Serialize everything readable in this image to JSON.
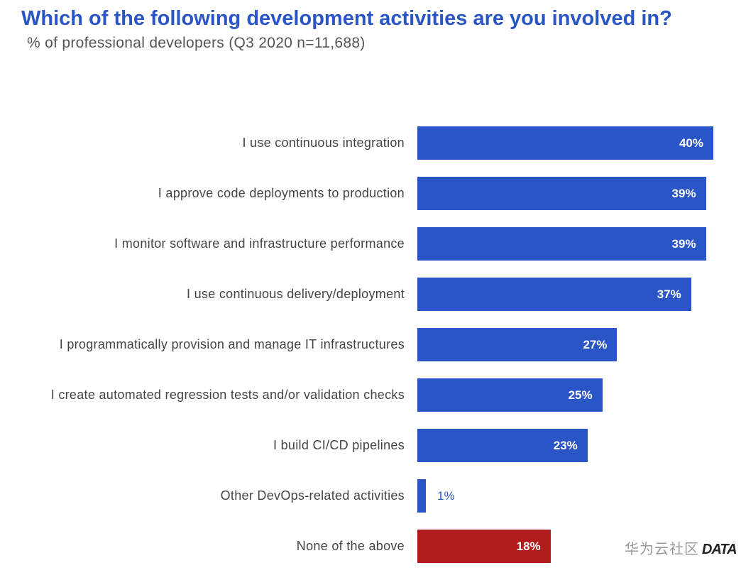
{
  "chart_data": {
    "type": "bar",
    "orientation": "horizontal",
    "title": "Which of the following development activities are you involved in?",
    "subtitle": "% of professional developers (Q3 2020 n=11,688)",
    "categories": [
      "I use continuous integration",
      "I approve code deployments to production",
      "I monitor software and infrastructure performance",
      "I use continuous delivery/deployment",
      "I programmatically provision and manage IT infrastructures",
      "I create automated regression tests and/or validation checks",
      "I build CI/CD pipelines",
      "Other DevOps-related activities",
      "None of the above"
    ],
    "values": [
      40,
      39,
      39,
      37,
      27,
      25,
      23,
      1,
      18
    ],
    "value_labels": [
      "40%",
      "39%",
      "39%",
      "37%",
      "27%",
      "25%",
      "23%",
      "1%",
      "18%"
    ],
    "bar_colors": [
      "#2a55c6",
      "#2a55c6",
      "#2a55c6",
      "#2a55c6",
      "#2a55c6",
      "#2a55c6",
      "#2a55c6",
      "#2a55c6",
      "#b01c1c"
    ],
    "xlim": [
      0,
      40
    ],
    "grid": false
  },
  "watermark": {
    "text": "华为云社区",
    "logo": "DATA"
  }
}
